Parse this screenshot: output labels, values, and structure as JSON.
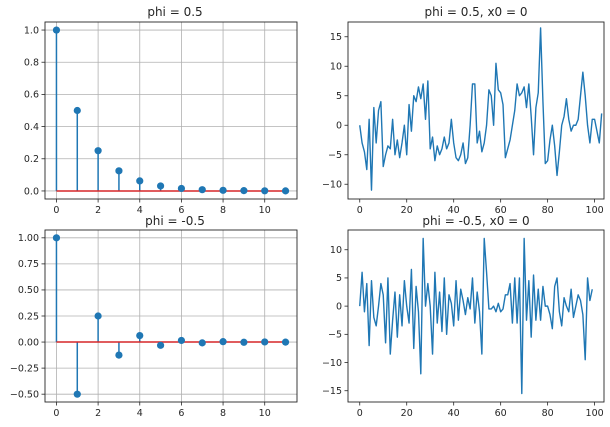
{
  "chart_data": [
    {
      "type": "stem",
      "title": "phi = 0.5",
      "x": [
        0,
        1,
        2,
        3,
        4,
        5,
        6,
        7,
        8,
        9,
        10,
        11
      ],
      "values": [
        1.0,
        0.5,
        0.25,
        0.125,
        0.0625,
        0.03125,
        0.0156,
        0.0078,
        0.0039,
        0.002,
        0.001,
        0.0005
      ],
      "xlim": [
        -0.55,
        11.55
      ],
      "ylim": [
        -0.05,
        1.05
      ],
      "xticks": [
        0,
        2,
        4,
        6,
        8,
        10
      ],
      "yticks": [
        0.0,
        0.2,
        0.4,
        0.6,
        0.8,
        1.0
      ],
      "ytick_labels": [
        "0.0",
        "0.2",
        "0.4",
        "0.6",
        "0.8",
        "1.0"
      ],
      "grid": true,
      "colors": {
        "stem": "#1f77b4",
        "baseline": "#d62728",
        "grid": "#b0b0b0"
      }
    },
    {
      "type": "line",
      "title": "phi = 0.5, x0 = 0",
      "y": [
        0,
        -3,
        -4.5,
        -7.5,
        1,
        -11,
        3,
        -3,
        2.5,
        4,
        -7,
        -5,
        -3.5,
        -4,
        1,
        -5,
        -2.5,
        -5.5,
        -3,
        0,
        -5,
        3.5,
        -1,
        5,
        4,
        6.5,
        4.5,
        7,
        1,
        7.5,
        -4,
        -2,
        -6,
        -3.5,
        -5,
        -4,
        -2,
        -4,
        -3,
        1,
        -3,
        -5.5,
        -6,
        -5,
        -3,
        -6.5,
        -5.5,
        0,
        7,
        7,
        -3,
        -1,
        -4.5,
        -3,
        0,
        6,
        5,
        0,
        10.5,
        6,
        5.5,
        3.5,
        -5.5,
        -4,
        -2.5,
        0,
        2.5,
        7,
        5,
        5.5,
        6.5,
        3,
        7,
        1.5,
        -5,
        3,
        5.5,
        16.5,
        4,
        -6.5,
        -6,
        -2.5,
        0,
        -3.5,
        -8.5,
        -4.5,
        0,
        1.5,
        4.5,
        1,
        -1,
        0,
        0,
        1,
        5,
        9,
        5,
        0,
        -3,
        1,
        1,
        -1,
        -3,
        2
      ],
      "xlim": [
        -5,
        104
      ],
      "ylim": [
        -12.5,
        17.5
      ],
      "xticks": [
        0,
        20,
        40,
        60,
        80,
        100
      ],
      "yticks": [
        -10,
        -5,
        0,
        5,
        10,
        15
      ],
      "ytick_labels": [
        "−10",
        "−5",
        "0",
        "5",
        "10",
        "15"
      ],
      "grid": false,
      "colors": {
        "line": "#1f77b4"
      }
    },
    {
      "type": "stem",
      "title": "phi = -0.5",
      "x": [
        0,
        1,
        2,
        3,
        4,
        5,
        6,
        7,
        8,
        9,
        10,
        11
      ],
      "values": [
        1.0,
        -0.5,
        0.25,
        -0.125,
        0.0625,
        -0.03125,
        0.0156,
        -0.0078,
        0.0039,
        -0.002,
        0.001,
        -0.0005
      ],
      "xlim": [
        -0.55,
        11.55
      ],
      "ylim": [
        -0.575,
        1.075
      ],
      "xticks": [
        0,
        2,
        4,
        6,
        8,
        10
      ],
      "yticks": [
        -0.5,
        -0.25,
        0.0,
        0.25,
        0.5,
        0.75,
        1.0
      ],
      "ytick_labels": [
        "−0.50",
        "−0.25",
        "0.00",
        "0.25",
        "0.50",
        "0.75",
        "1.00"
      ],
      "grid": true,
      "colors": {
        "stem": "#1f77b4",
        "baseline": "#d62728",
        "grid": "#b0b0b0"
      }
    },
    {
      "type": "line",
      "title": "phi = -0.5, x0 = 0",
      "y": [
        0,
        6,
        -1,
        4,
        -7,
        4.5,
        -2,
        -3.5,
        0,
        4,
        2,
        -6.5,
        5,
        -8.5,
        -2.5,
        2.5,
        -5.5,
        2,
        -3.5,
        4.5,
        0,
        -3,
        6.5,
        -7.5,
        3.5,
        -1,
        -12,
        12,
        0,
        4,
        0,
        -8.5,
        6,
        -3,
        2.5,
        -4.5,
        5,
        -5,
        2,
        0.5,
        -3.5,
        4.5,
        -2.5,
        3,
        1,
        -1.5,
        1.5,
        -0.5,
        5,
        -3,
        2.5,
        -1,
        -8.5,
        12,
        6,
        -0.5,
        -0.5,
        0,
        -1,
        0.5,
        -1,
        -0.5,
        2,
        2,
        4,
        -3,
        5,
        -3,
        5,
        -15.5,
        12,
        -2.5,
        4.5,
        -5.5,
        5.5,
        -2.5,
        3,
        -2.5,
        3.5,
        0,
        0,
        -1.5,
        -4,
        3.5,
        5,
        -1,
        -3.5,
        1.5,
        0,
        -1,
        3,
        -2,
        0,
        2,
        1,
        -1.5,
        -9.5,
        5,
        1,
        3
      ],
      "xlim": [
        -5,
        104
      ],
      "ylim": [
        -17,
        13.5
      ],
      "xticks": [
        0,
        20,
        40,
        60,
        80,
        100
      ],
      "yticks": [
        -15,
        -10,
        -5,
        0,
        5,
        10
      ],
      "ytick_labels": [
        "−15",
        "−10",
        "−5",
        "0",
        "5",
        "10"
      ],
      "grid": false,
      "colors": {
        "line": "#1f77b4"
      }
    }
  ]
}
